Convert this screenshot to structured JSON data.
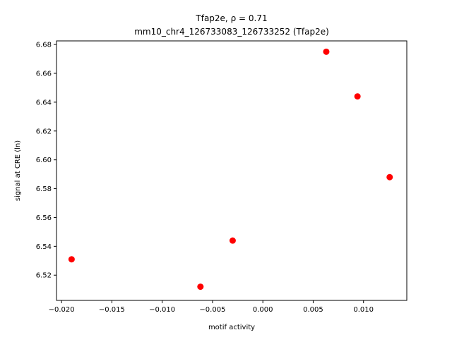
{
  "chart_data": {
    "type": "scatter",
    "title_line1": "Tfap2e, ρ = 0.71",
    "title_line2": "mm10_chr4_126733083_126733252 (Tfap2e)",
    "xlabel": "motif activity",
    "ylabel": "signal at CRE (ln)",
    "xlim": [
      -0.0205,
      0.0143
    ],
    "ylim": [
      6.5025,
      6.6825
    ],
    "xticks": [
      -0.02,
      -0.015,
      -0.01,
      -0.005,
      0.0,
      0.005,
      0.01
    ],
    "xtick_labels": [
      "−0.020",
      "−0.015",
      "−0.010",
      "−0.005",
      "0.000",
      "0.005",
      "0.010"
    ],
    "yticks": [
      6.52,
      6.54,
      6.56,
      6.58,
      6.6,
      6.62,
      6.64,
      6.66,
      6.68
    ],
    "ytick_labels": [
      "6.52",
      "6.54",
      "6.56",
      "6.58",
      "6.60",
      "6.62",
      "6.64",
      "6.66",
      "6.68"
    ],
    "points": [
      {
        "x": -0.019,
        "y": 6.531
      },
      {
        "x": -0.0062,
        "y": 6.512
      },
      {
        "x": -0.003,
        "y": 6.544
      },
      {
        "x": 0.0063,
        "y": 6.675
      },
      {
        "x": 0.0094,
        "y": 6.644
      },
      {
        "x": 0.0126,
        "y": 6.588
      }
    ],
    "marker_color": "#ff0000",
    "grid": false,
    "legend": "none"
  }
}
